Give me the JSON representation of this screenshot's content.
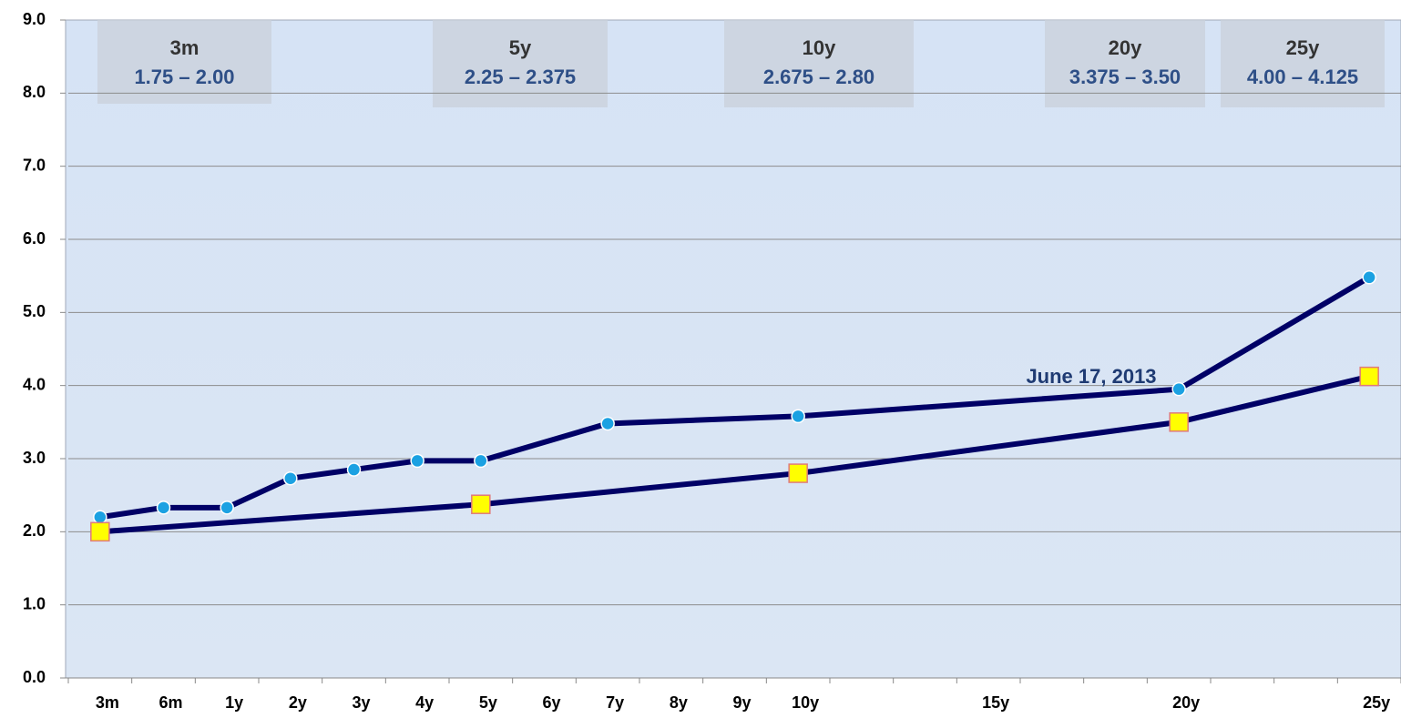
{
  "chart_data": {
    "type": "line",
    "categories": [
      "3m",
      "6m",
      "1y",
      "2y",
      "3y",
      "4y",
      "5y",
      "6y",
      "7y",
      "8y",
      "9y",
      "10y",
      null,
      null,
      "15y",
      null,
      null,
      "20y",
      null,
      null,
      "25y"
    ],
    "series": [
      {
        "color": "#1ba1e2",
        "line_color": "#000066",
        "marker": "circle",
        "values": [
          2.2,
          2.33,
          2.33,
          2.73,
          2.85,
          2.97,
          2.97,
          null,
          3.48,
          null,
          null,
          3.58,
          null,
          null,
          null,
          null,
          null,
          3.95,
          null,
          null,
          5.48
        ]
      },
      {
        "color": "#ffff00",
        "line_color": "#000066",
        "marker": "square",
        "values": [
          2.0,
          null,
          null,
          null,
          null,
          null,
          2.375,
          null,
          null,
          null,
          null,
          2.8,
          null,
          null,
          null,
          null,
          null,
          3.5,
          null,
          null,
          4.125
        ]
      }
    ],
    "span_gaps": true,
    "ylim": [
      0,
      9
    ],
    "yticks": [
      {
        "value": 0,
        "label": "0.0"
      },
      {
        "value": 1,
        "label": "1.0"
      },
      {
        "value": 2,
        "label": "2.0"
      },
      {
        "value": 3,
        "label": "3.0"
      },
      {
        "value": 4,
        "label": "4.0"
      },
      {
        "value": 5,
        "label": "5.0"
      },
      {
        "value": 6,
        "label": "6.0"
      },
      {
        "value": 7,
        "label": "7.0"
      },
      {
        "value": 8,
        "label": "8.0"
      },
      {
        "value": 9,
        "label": "9.0"
      }
    ],
    "grid": true,
    "annotations": [
      "June 17, 2013"
    ],
    "range_boxes": [
      {
        "tenor": "3m",
        "range": "1.75 – 2.00"
      },
      {
        "tenor": "5y",
        "range": "2.25 – 2.375"
      },
      {
        "tenor": "10y",
        "range": "2.675 – 2.80"
      },
      {
        "tenor": "20y",
        "range": "3.375 – 3.50"
      },
      {
        "tenor": "25y",
        "range": "4.00 – 4.125"
      }
    ]
  }
}
